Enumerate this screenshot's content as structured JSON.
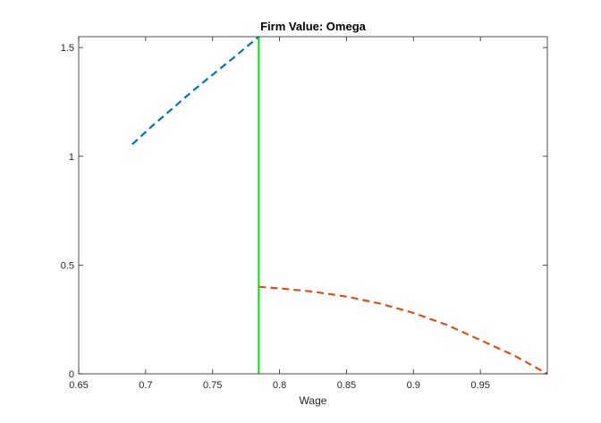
{
  "chart_data": {
    "type": "line",
    "title": "Firm Value: Omega",
    "xlabel": "Wage",
    "ylabel": "",
    "xlim": [
      0.65,
      1.0
    ],
    "ylim": [
      0,
      1.55
    ],
    "xticks": [
      0.65,
      0.7,
      0.75,
      0.8,
      0.85,
      0.9,
      0.95
    ],
    "xtick_labels": [
      "0.65",
      "0.7",
      "0.75",
      "0.8",
      "0.85",
      "0.9",
      "0.95"
    ],
    "yticks": [
      0,
      0.5,
      1,
      1.5
    ],
    "ytick_labels": [
      "0",
      "0.5",
      "1",
      "1.5"
    ],
    "grid": false,
    "legend": "none",
    "series": [
      {
        "style": "dashed",
        "color": "#0072BD",
        "x": [
          0.69,
          0.705,
          0.72,
          0.735,
          0.75,
          0.765,
          0.7845
        ],
        "y": [
          1.055,
          1.14,
          1.22,
          1.3,
          1.375,
          1.45,
          1.55
        ]
      },
      {
        "style": "dashed",
        "color": "#D95319",
        "x": [
          0.7845,
          0.8,
          0.825,
          0.85,
          0.875,
          0.9,
          0.925,
          0.95,
          0.975,
          1.0
        ],
        "y": [
          0.4,
          0.393,
          0.378,
          0.355,
          0.323,
          0.28,
          0.225,
          0.155,
          0.085,
          0.0
        ]
      },
      {
        "style": "solid",
        "color": "#00E000",
        "x": [
          0.7845,
          0.7845
        ],
        "y": [
          0,
          1.55
        ]
      }
    ]
  }
}
